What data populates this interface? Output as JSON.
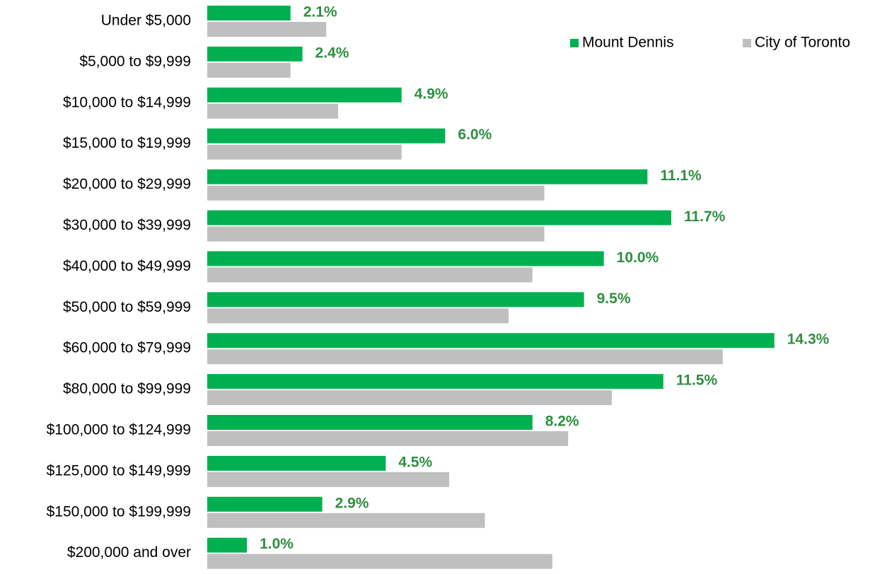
{
  "chart_data": {
    "type": "bar",
    "orientation": "horizontal",
    "categories": [
      "Under $5,000",
      "$5,000 to $9,999",
      "$10,000 to $14,999",
      "$15,000 to $19,999",
      "$20,000 to $29,999",
      "$30,000 to $39,999",
      "$40,000 to $49,999",
      "$50,000 to $59,999",
      "$60,000 to $79,999",
      "$80,000 to $99,999",
      "$100,000 to $124,999",
      "$125,000 to $149,999",
      "$150,000 to $199,999",
      "$200,000 and over"
    ],
    "series": [
      {
        "name": "Mount Dennis",
        "color": "#00b050",
        "label_color": "#2f8f3f",
        "values": [
          2.1,
          2.4,
          4.9,
          6.0,
          11.1,
          11.7,
          10.0,
          9.5,
          14.3,
          11.5,
          8.2,
          4.5,
          2.9,
          1.0
        ],
        "value_labels": [
          "2.1%",
          "2.4%",
          "4.9%",
          "6.0%",
          "11.1%",
          "11.7%",
          "10.0%",
          "9.5%",
          "14.3%",
          "11.5%",
          "8.2%",
          "4.5%",
          "2.9%",
          "1.0%"
        ]
      },
      {
        "name": "City of Toronto",
        "color": "#bfbfbf",
        "values": [
          3.0,
          2.1,
          3.3,
          4.9,
          8.5,
          8.5,
          8.2,
          7.6,
          13.0,
          10.2,
          9.1,
          6.1,
          7.0,
          8.7
        ]
      }
    ],
    "xlim": [
      0,
      15
    ],
    "legend": "top-right"
  }
}
